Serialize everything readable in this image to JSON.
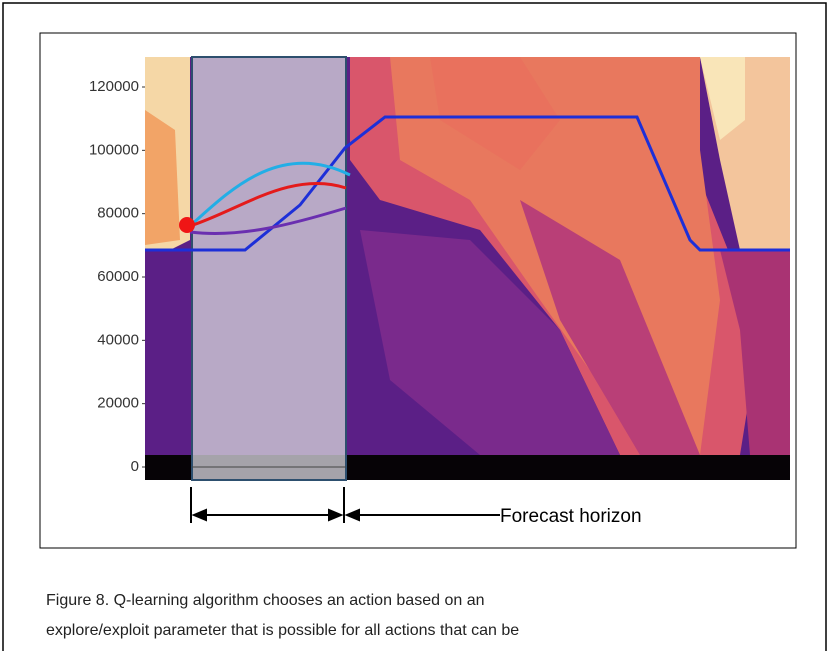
{
  "figure": {
    "yticks": [
      0,
      20000,
      40000,
      60000,
      80000,
      100000,
      120000
    ],
    "ylim": [
      0,
      130000
    ],
    "annotation": "Forecast horizon",
    "caption": [
      "Figure 8. Q-learning algorithm chooses an action based on an",
      "explore/exploit parameter that is possible for all actions that can be"
    ]
  }
}
